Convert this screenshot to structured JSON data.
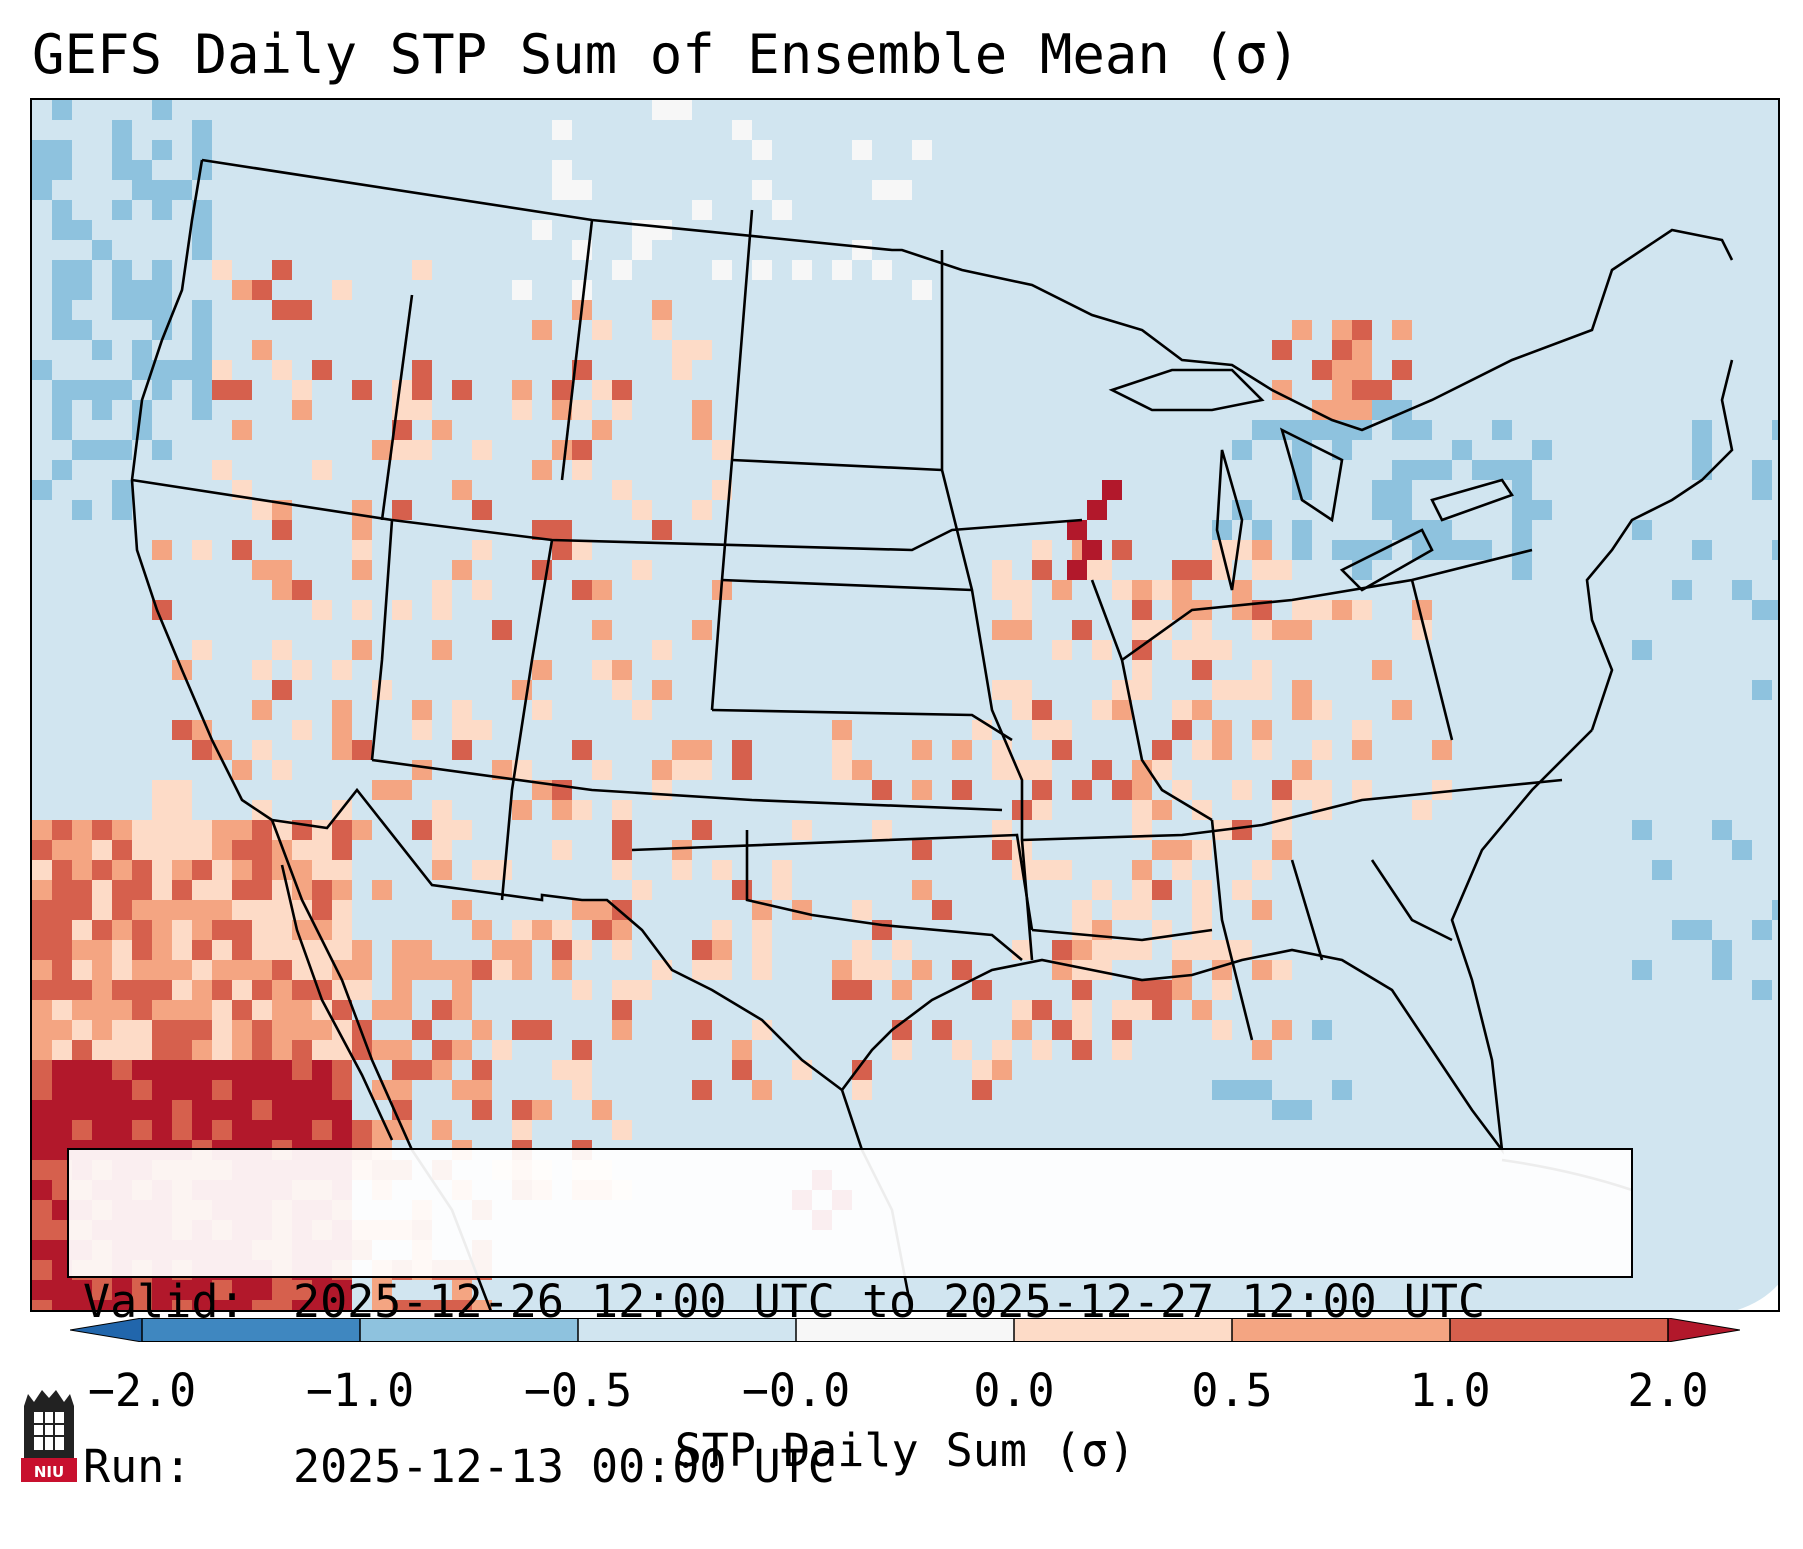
{
  "title": "GEFS Daily STP Sum of Ensemble Mean (σ)",
  "info": {
    "valid_label": "Valid:",
    "valid_value": "2025-12-26 12:00 UTC to 2025-12-27 12:00 UTC",
    "run_label": "Run:",
    "run_value": "2025-12-13 00:00 UTC"
  },
  "colorbar": {
    "label": "STP Daily Sum (σ)",
    "ticks": [
      "−2.0",
      "−1.0",
      "−0.5",
      "−0.0",
      "0.0",
      "0.5",
      "1.0",
      "2.0"
    ],
    "bins": [
      {
        "range": "-2.0 to -1.0",
        "color": "#3f87c0"
      },
      {
        "range": "-1.0 to -0.5",
        "color": "#8ec2de"
      },
      {
        "range": "-0.5 to -0.0",
        "color": "#d1e5f0"
      },
      {
        "range": "-0.0 to 0.0",
        "color": "#f7f7f7"
      },
      {
        "range": "0.0 to 0.5",
        "color": "#fddbc7"
      },
      {
        "range": "0.5 to 1.0",
        "color": "#f4a582"
      },
      {
        "range": "1.0 to 2.0",
        "color": "#d6604d"
      }
    ],
    "under_color": "#2166ac",
    "over_color": "#b2182b"
  },
  "logo_text": "NIU",
  "icons": {
    "logo": "niu-logo-icon"
  }
}
